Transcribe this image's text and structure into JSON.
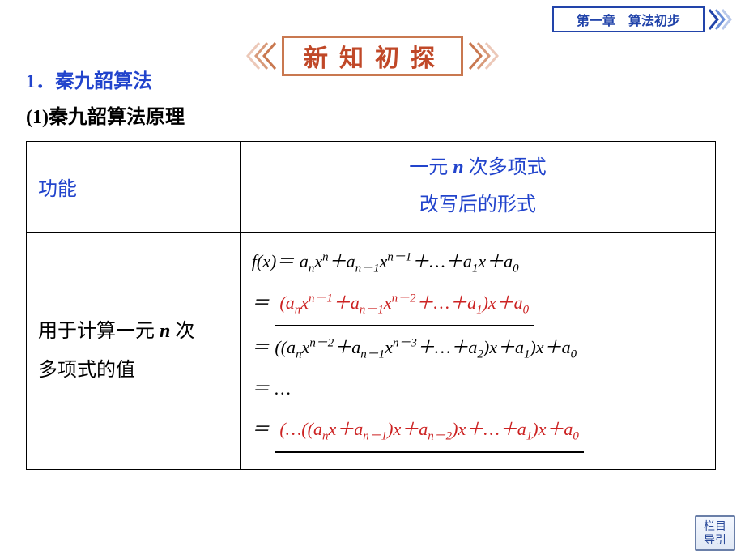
{
  "colors": {
    "chapter_border": "#2244aa",
    "chapter_text": "#2244aa",
    "title_border": "#c97850",
    "title_text": "#c04828",
    "heading_text": "#2244cc",
    "body_text": "#000000",
    "fill_text": "#cc2222",
    "nav_border": "#6a7fa8",
    "nav_text": "#2a4a9a",
    "background": "#ffffff"
  },
  "chapter": {
    "label": "第一章　算法初步"
  },
  "title_banner": {
    "text": "新知初探"
  },
  "section": {
    "number": "1",
    "title": "秦九韶算法"
  },
  "subsection": {
    "number": "(1)",
    "title": "秦九韶算法原理"
  },
  "table": {
    "header_left": "功能",
    "header_right_line1": "一元 n 次多项式",
    "header_right_line2": "改写后的形式",
    "desc_line1_pre": "用于计算一元 ",
    "desc_line1_var": "n",
    "desc_line1_post": " 次",
    "desc_line2": "多项式的值",
    "formula": {
      "line1_prefix": "f(x)＝",
      "line1_body": "a<sub>n</sub>x<sup>n</sup>＋a<sub>n－1</sub>x<sup>n－1</sup>＋…＋a<sub>1</sub>x＋a<sub>0</sub>",
      "line2_prefix": "＝",
      "line2_fill": "(a<sub>n</sub>x<sup>n－1</sup>＋a<sub>n－1</sub>x<sup>n－2</sup>＋…＋a<sub>1</sub>)x＋a<sub>0</sub>",
      "line3_prefix": "＝",
      "line3_body": "((a<sub>n</sub>x<sup>n－2</sup>＋a<sub>n－1</sub>x<sup>n－3</sup>＋…＋a<sub>2</sub>)x＋a<sub>1</sub>)x＋a<sub>0</sub>",
      "line4_prefix": "＝",
      "line4_body": "…",
      "line5_prefix": "＝",
      "line5_fill": "(…((a<sub>n</sub>x＋a<sub>n－1</sub>)x＋a<sub>n－2</sub>)x＋…＋a<sub>1</sub>)x＋a<sub>0</sub>"
    }
  },
  "nav": {
    "line1": "栏目",
    "line2": "导引"
  }
}
